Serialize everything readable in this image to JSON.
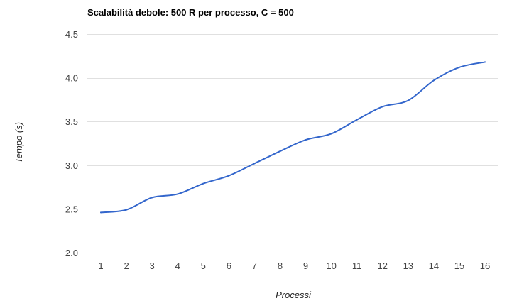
{
  "chart_data": {
    "type": "line",
    "title": "Scalabilità debole: 500 R per processo, C = 500",
    "xlabel": "Processi",
    "ylabel": "Tempo (s)",
    "x": [
      1,
      2,
      3,
      4,
      5,
      6,
      7,
      8,
      9,
      10,
      11,
      12,
      13,
      14,
      15,
      16
    ],
    "series": [
      {
        "values": [
          2.46,
          2.49,
          2.63,
          2.67,
          2.79,
          2.88,
          3.02,
          3.16,
          3.29,
          3.36,
          3.52,
          3.67,
          3.74,
          3.97,
          4.12,
          4.18
        ]
      }
    ],
    "ylim": [
      2.0,
      4.5
    ],
    "yticks": [
      "2.0",
      "2.5",
      "3.0",
      "3.5",
      "4.0",
      "4.5"
    ],
    "xticks": [
      "1",
      "2",
      "3",
      "4",
      "5",
      "6",
      "7",
      "8",
      "9",
      "10",
      "11",
      "12",
      "13",
      "14",
      "15",
      "16"
    ],
    "grid": true,
    "legend": "none",
    "colors": {
      "line": "#3366cc",
      "grid": "#e0e0e0",
      "baseline": "#333333"
    }
  }
}
